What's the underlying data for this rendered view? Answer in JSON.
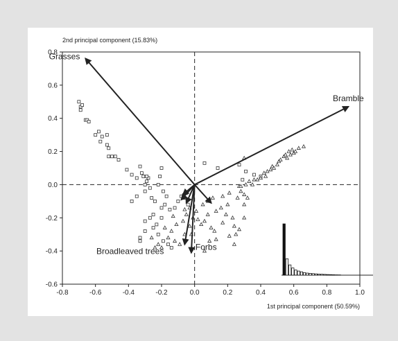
{
  "chart_data": {
    "type": "scatter",
    "title": "",
    "xlabel": "1st principal component (50.59%)",
    "ylabel": "2nd principal component (15.83%)",
    "xlim": [
      -0.8,
      1.0
    ],
    "ylim": [
      -0.6,
      0.8
    ],
    "xticks": [
      -0.8,
      -0.6,
      -0.4,
      -0.2,
      0.0,
      0.2,
      0.4,
      0.6,
      0.8,
      1.0
    ],
    "yticks": [
      -0.6,
      -0.4,
      -0.2,
      0.0,
      0.2,
      0.4,
      0.6,
      0.8
    ],
    "xtick_labels": [
      "-0.8",
      "-0.6",
      "-0.4",
      "-0.2",
      "0.0",
      "0.2",
      "0.4",
      "0.6",
      "0.8",
      "1.0"
    ],
    "ytick_labels": [
      "-0.6",
      "-0.4",
      "-0.2",
      "0.0",
      "0.2",
      "0.4",
      "0.6",
      "0.8"
    ],
    "grid": false,
    "reference_lines": [
      {
        "axis": "x",
        "value": 0,
        "style": "dashed"
      },
      {
        "axis": "y",
        "value": 0,
        "style": "dashed"
      }
    ],
    "vectors": [
      {
        "label": "Grasses",
        "x": -0.66,
        "y": 0.76
      },
      {
        "label": "Bramble",
        "x": 0.93,
        "y": 0.47
      },
      {
        "label": "Forbs",
        "x": -0.02,
        "y": -0.41
      },
      {
        "label": "Broadleaved trees",
        "x": -0.06,
        "y": -0.36
      },
      {
        "label": "",
        "x": 0.1,
        "y": -0.11
      },
      {
        "label": "",
        "x": -0.08,
        "y": -0.09
      },
      {
        "label": "",
        "x": -0.05,
        "y": -0.11
      },
      {
        "label": "",
        "x": -0.07,
        "y": -0.06
      }
    ],
    "series": [
      {
        "marker": "square",
        "points": [
          [
            -0.7,
            0.5
          ],
          [
            -0.69,
            0.47
          ],
          [
            -0.68,
            0.48
          ],
          [
            -0.69,
            0.45
          ],
          [
            -0.66,
            0.39
          ],
          [
            -0.65,
            0.39
          ],
          [
            -0.64,
            0.38
          ],
          [
            -0.6,
            0.3
          ],
          [
            -0.58,
            0.32
          ],
          [
            -0.56,
            0.29
          ],
          [
            -0.53,
            0.3
          ],
          [
            -0.57,
            0.26
          ],
          [
            -0.53,
            0.24
          ],
          [
            -0.52,
            0.22
          ],
          [
            -0.52,
            0.17
          ],
          [
            -0.5,
            0.17
          ],
          [
            -0.48,
            0.17
          ],
          [
            -0.46,
            0.15
          ],
          [
            -0.41,
            0.09
          ],
          [
            -0.38,
            0.06
          ],
          [
            -0.35,
            0.04
          ],
          [
            -0.33,
            0.11
          ],
          [
            -0.32,
            0.07
          ],
          [
            -0.31,
            0.05
          ],
          [
            -0.28,
            0.04
          ],
          [
            -0.29,
            0.02
          ],
          [
            -0.3,
            0.0
          ],
          [
            -0.27,
            -0.02
          ],
          [
            -0.3,
            -0.04
          ],
          [
            -0.35,
            -0.07
          ],
          [
            -0.38,
            -0.1
          ],
          [
            -0.26,
            -0.08
          ],
          [
            -0.24,
            -0.1
          ],
          [
            -0.22,
            0.0
          ],
          [
            -0.21,
            0.05
          ],
          [
            -0.2,
            0.1
          ],
          [
            -0.19,
            -0.04
          ],
          [
            -0.17,
            -0.07
          ],
          [
            -0.18,
            -0.12
          ],
          [
            -0.15,
            -0.15
          ],
          [
            -0.2,
            -0.14
          ],
          [
            -0.25,
            -0.18
          ],
          [
            -0.27,
            -0.2
          ],
          [
            -0.3,
            -0.22
          ],
          [
            -0.3,
            -0.28
          ],
          [
            -0.33,
            -0.32
          ],
          [
            -0.33,
            -0.34
          ],
          [
            -0.25,
            -0.26
          ],
          [
            -0.23,
            -0.24
          ],
          [
            -0.2,
            -0.2
          ],
          [
            -0.22,
            -0.3
          ],
          [
            -0.19,
            -0.34
          ],
          [
            -0.16,
            -0.36
          ],
          [
            -0.14,
            -0.38
          ],
          [
            -0.12,
            -0.14
          ],
          [
            -0.1,
            -0.1
          ],
          [
            -0.08,
            -0.07
          ],
          [
            -0.06,
            -0.08
          ],
          [
            -0.04,
            -0.12
          ],
          [
            -0.05,
            -0.05
          ],
          [
            0.06,
            0.13
          ],
          [
            0.14,
            0.1
          ],
          [
            0.27,
            0.12
          ],
          [
            0.31,
            0.08
          ],
          [
            0.36,
            0.06
          ],
          [
            0.29,
            0.03
          ],
          [
            0.4,
            0.05
          ],
          [
            -0.29,
            0.05
          ]
        ]
      },
      {
        "marker": "triangle",
        "points": [
          [
            -0.26,
            -0.32
          ],
          [
            -0.24,
            -0.38
          ],
          [
            -0.22,
            -0.36
          ],
          [
            -0.2,
            -0.38
          ],
          [
            -0.16,
            -0.32
          ],
          [
            -0.14,
            -0.28
          ],
          [
            -0.12,
            -0.34
          ],
          [
            -0.09,
            -0.36
          ],
          [
            -0.06,
            -0.3
          ],
          [
            -0.07,
            -0.22
          ],
          [
            -0.05,
            -0.18
          ],
          [
            -0.03,
            -0.25
          ],
          [
            -0.02,
            -0.3
          ],
          [
            -0.06,
            -0.15
          ],
          [
            -0.03,
            -0.14
          ],
          [
            -0.01,
            -0.2
          ],
          [
            0.01,
            -0.16
          ],
          [
            0.02,
            -0.21
          ],
          [
            0.04,
            -0.24
          ],
          [
            0.06,
            -0.22
          ],
          [
            0.08,
            -0.18
          ],
          [
            0.05,
            -0.12
          ],
          [
            0.08,
            -0.1
          ],
          [
            0.11,
            -0.08
          ],
          [
            0.1,
            -0.26
          ],
          [
            0.12,
            -0.28
          ],
          [
            0.09,
            -0.34
          ],
          [
            0.06,
            -0.4
          ],
          [
            0.13,
            -0.16
          ],
          [
            0.16,
            -0.14
          ],
          [
            0.2,
            -0.12
          ],
          [
            0.17,
            -0.07
          ],
          [
            0.21,
            -0.05
          ],
          [
            0.19,
            -0.18
          ],
          [
            0.23,
            -0.2
          ],
          [
            0.24,
            -0.25
          ],
          [
            0.26,
            -0.08
          ],
          [
            0.28,
            -0.04
          ],
          [
            0.3,
            -0.06
          ],
          [
            0.32,
            -0.08
          ],
          [
            0.27,
            -0.01
          ],
          [
            0.31,
            0.0
          ],
          [
            0.33,
            0.02
          ],
          [
            0.35,
            0.0
          ],
          [
            0.36,
            0.03
          ],
          [
            0.38,
            0.03
          ],
          [
            0.4,
            0.04
          ],
          [
            0.42,
            0.07
          ],
          [
            0.43,
            0.05
          ],
          [
            0.44,
            0.08
          ],
          [
            0.46,
            0.09
          ],
          [
            0.47,
            0.11
          ],
          [
            0.48,
            0.1
          ],
          [
            0.5,
            0.12
          ],
          [
            0.51,
            0.14
          ],
          [
            0.52,
            0.15
          ],
          [
            0.54,
            0.17
          ],
          [
            0.55,
            0.18
          ],
          [
            0.56,
            0.16
          ],
          [
            0.57,
            0.2
          ],
          [
            0.58,
            0.18
          ],
          [
            0.59,
            0.21
          ],
          [
            0.6,
            0.19
          ],
          [
            0.61,
            0.2
          ],
          [
            0.63,
            0.22
          ],
          [
            0.66,
            0.23
          ],
          [
            0.3,
            0.16
          ],
          [
            0.28,
            -0.01
          ],
          [
            0.3,
            -0.12
          ],
          [
            0.3,
            -0.2
          ],
          [
            0.27,
            -0.27
          ],
          [
            0.25,
            -0.3
          ],
          [
            0.24,
            -0.36
          ],
          [
            0.21,
            -0.31
          ],
          [
            0.17,
            -0.23
          ],
          [
            0.13,
            -0.33
          ],
          [
            -0.11,
            -0.24
          ],
          [
            -0.13,
            -0.19
          ],
          [
            -0.18,
            -0.26
          ]
        ]
      }
    ],
    "inset": {
      "type": "bar",
      "values": [
        1.0,
        0.32,
        0.2,
        0.14,
        0.1,
        0.08,
        0.065,
        0.05,
        0.04,
        0.035,
        0.03,
        0.025,
        0.02,
        0.018,
        0.015,
        0.012,
        0.01,
        0.008,
        0.006,
        0.005
      ]
    }
  }
}
